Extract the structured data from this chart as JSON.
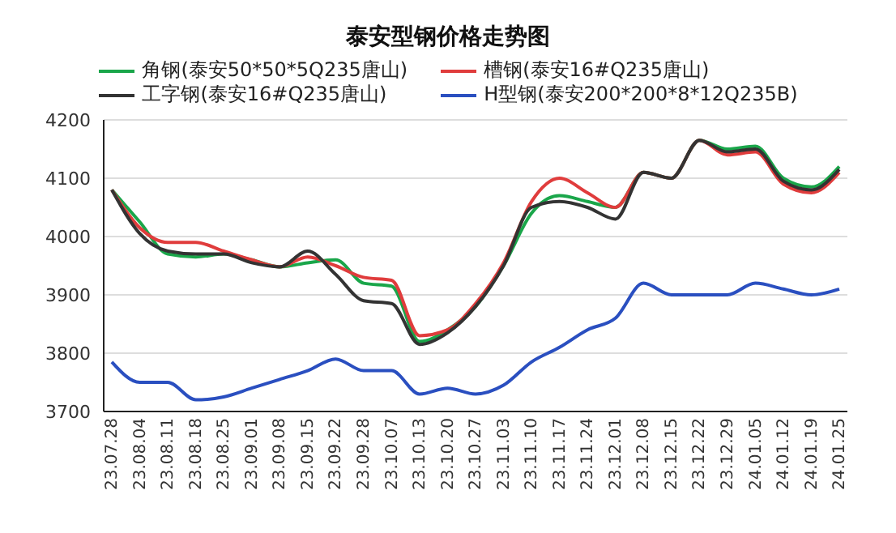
{
  "chart_data": {
    "type": "line",
    "title": "泰安型钢价格走势图",
    "categories": [
      "23.07.28",
      "23.08.04",
      "23.08.11",
      "23.08.18",
      "23.08.25",
      "23.09.01",
      "23.09.08",
      "23.09.15",
      "23.09.22",
      "23.09.28",
      "23.10.07",
      "23.10.13",
      "23.10.20",
      "23.10.27",
      "23.11.03",
      "23.11.10",
      "23.11.17",
      "23.11.24",
      "23.12.01",
      "23.12.08",
      "23.12.15",
      "23.12.22",
      "23.12.29",
      "24.01.05",
      "24.01.12",
      "24.01.19",
      "24.01.25"
    ],
    "series": [
      {
        "name": "角钢(泰安50*50*5Q235唐山)",
        "color": "#1aa64a",
        "values": [
          4080,
          4025,
          3970,
          3965,
          3970,
          3960,
          3948,
          3955,
          3960,
          3920,
          3915,
          3820,
          3840,
          3880,
          3950,
          4040,
          4070,
          4060,
          4050,
          4110,
          4100,
          4165,
          4150,
          4155,
          4100,
          4085,
          4120
        ]
      },
      {
        "name": "槽钢(泰安16#Q235唐山)",
        "color": "#e03c3c",
        "values": [
          4080,
          4015,
          3990,
          3990,
          3975,
          3960,
          3948,
          3965,
          3950,
          3930,
          3925,
          3830,
          3840,
          3885,
          3955,
          4060,
          4100,
          4075,
          4050,
          4110,
          4100,
          4165,
          4140,
          4145,
          4090,
          4075,
          4110
        ]
      },
      {
        "name": "工字钢(泰安16#Q235唐山)",
        "color": "#333333",
        "values": [
          4080,
          4005,
          3975,
          3970,
          3970,
          3955,
          3948,
          3975,
          3935,
          3890,
          3885,
          3815,
          3835,
          3880,
          3950,
          4050,
          4060,
          4050,
          4030,
          4110,
          4100,
          4165,
          4145,
          4150,
          4095,
          4080,
          4115
        ]
      },
      {
        "name": "H型钢(泰安200*200*8*12Q235B)",
        "color": "#2a4fc0",
        "values": [
          3785,
          3750,
          3750,
          3720,
          3725,
          3740,
          3755,
          3770,
          3790,
          3770,
          3770,
          3730,
          3740,
          3730,
          3745,
          3785,
          3810,
          3840,
          3860,
          3920,
          3900,
          3900,
          3900,
          3920,
          3910,
          3900,
          3910
        ]
      }
    ],
    "ylim": [
      3700,
      4200
    ],
    "yticks": [
      3700,
      3800,
      3900,
      4000,
      4100,
      4200
    ],
    "grid": "y",
    "legend": "top",
    "marker": "none",
    "line_style": "solid"
  }
}
